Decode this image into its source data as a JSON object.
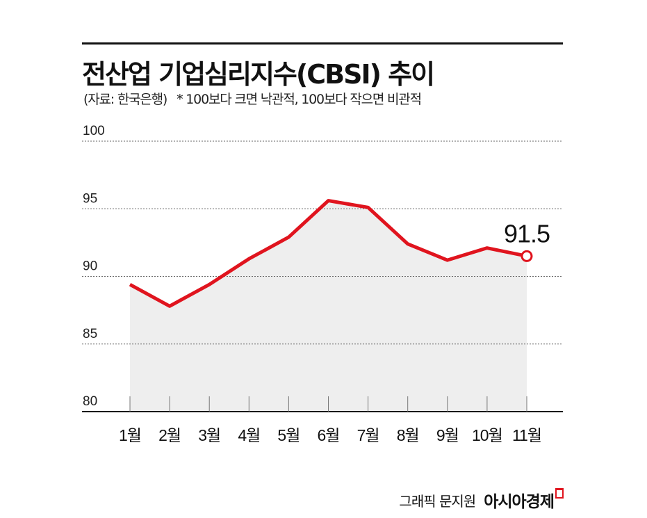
{
  "header": {
    "title": "전산업 기업심리지수(CBSI) 추이",
    "source": "(자료: 한국은행)",
    "note": "* 100보다 크면 낙관적, 100보다 작으면 비관적"
  },
  "credit": {
    "text": "그래픽 문지원",
    "logo": "아시아경제"
  },
  "colors": {
    "line": "#e0141e",
    "area": "#eeeeee",
    "grid": "#666666"
  },
  "chart_data": {
    "type": "line",
    "title": "전산업 기업심리지수(CBSI) 추이",
    "categories": [
      "1월",
      "2월",
      "3월",
      "4월",
      "5월",
      "6월",
      "7월",
      "8월",
      "9월",
      "10월",
      "11월"
    ],
    "series": [
      {
        "name": "CBSI",
        "values": [
          89.4,
          87.8,
          89.4,
          91.3,
          92.9,
          95.6,
          95.1,
          92.4,
          91.2,
          92.1,
          91.5
        ]
      }
    ],
    "yticks": [
      "80",
      "85",
      "90",
      "95",
      "100"
    ],
    "ylim": [
      80,
      100
    ],
    "annotation": "91.5",
    "grid": true,
    "xlabel": "",
    "ylabel": ""
  }
}
